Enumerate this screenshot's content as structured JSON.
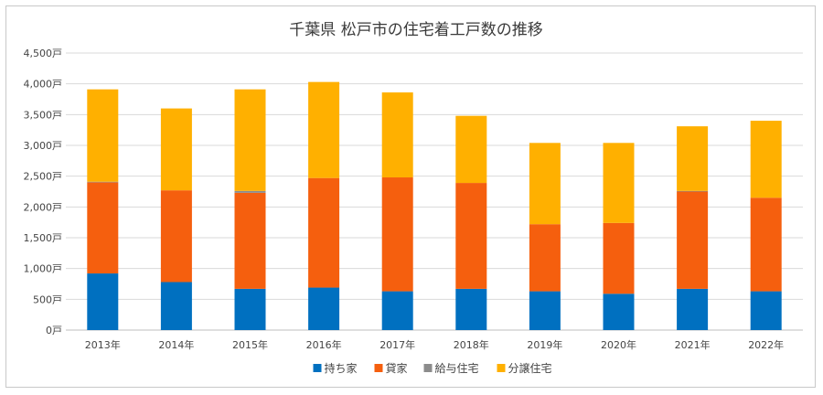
{
  "chart_data": {
    "type": "bar",
    "stacked": true,
    "title": "千葉県 松戸市の住宅着工戸数の推移",
    "xlabel": "",
    "ylabel": "",
    "categories": [
      "2013年",
      "2014年",
      "2015年",
      "2016年",
      "2017年",
      "2018年",
      "2019年",
      "2020年",
      "2021年",
      "2022年"
    ],
    "y_ticks": [
      "0戸",
      "500戸",
      "1,000戸",
      "1,500戸",
      "2,000戸",
      "2,500戸",
      "3,000戸",
      "3,500戸",
      "4,000戸",
      "4,500戸"
    ],
    "ylim": [
      0,
      4500
    ],
    "grid": true,
    "legend_position": "bottom",
    "series": [
      {
        "name": "持ち家",
        "color": "#0070c0",
        "values": [
          920,
          780,
          670,
          690,
          630,
          670,
          630,
          590,
          670,
          630
        ]
      },
      {
        "name": "貸家",
        "color": "#f55f0e",
        "values": [
          1480,
          1490,
          1560,
          1780,
          1850,
          1720,
          1090,
          1150,
          1580,
          1520
        ]
      },
      {
        "name": "給与住宅",
        "color": "#8c8c8c",
        "values": [
          10,
          0,
          30,
          0,
          0,
          0,
          0,
          0,
          10,
          0
        ]
      },
      {
        "name": "分譲住宅",
        "color": "#ffb000",
        "values": [
          1500,
          1330,
          1650,
          1560,
          1380,
          1090,
          1320,
          1300,
          1050,
          1250
        ]
      }
    ]
  }
}
